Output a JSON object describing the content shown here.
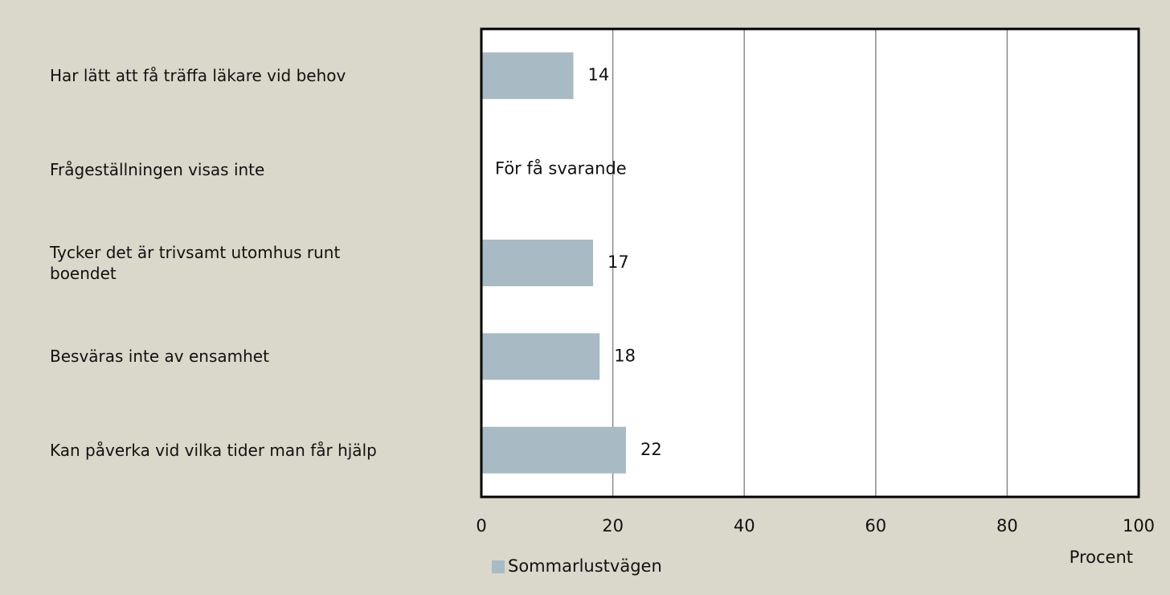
{
  "chart_data": {
    "type": "barh",
    "categories": [
      "Har lätt att få träffa läkare vid behov",
      "Frågeställningen visas inte",
      "Tycker det är trivsamt utomhus runt boendet",
      "Besväras inte av ensamhet",
      "Kan påverka vid vilka tider man får hjälp"
    ],
    "series": [
      {
        "name": "Sommarlustvägen",
        "color": "#a8bac4",
        "values": [
          14,
          null,
          17,
          18,
          22
        ]
      }
    ],
    "annotation": "För få svarande",
    "xlabel": "Procent",
    "xlim": [
      0,
      100
    ],
    "xticks": [
      0,
      20,
      40,
      60,
      80,
      100
    ],
    "grid": true,
    "legend": "bottom"
  }
}
